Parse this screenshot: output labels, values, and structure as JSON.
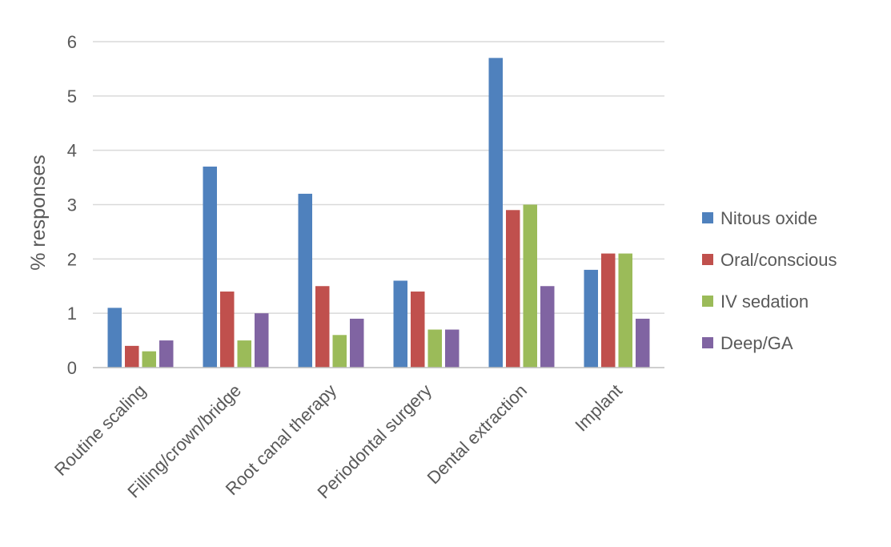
{
  "chart_data": {
    "type": "bar",
    "title": "",
    "xlabel": "",
    "ylabel": "% responses",
    "ylim": [
      0,
      6
    ],
    "yticks": [
      0,
      1,
      2,
      3,
      4,
      5,
      6
    ],
    "grid": true,
    "legend_position": "right",
    "categories": [
      "Routine scaling",
      "Filling/crown/bridge",
      "Root canal therapy",
      "Periodontal surgery",
      "Dental extraction",
      "Implant"
    ],
    "series": [
      {
        "name": "Nitous oxide",
        "color": "#4f81bd",
        "values": [
          1.1,
          3.7,
          3.2,
          1.6,
          5.7,
          1.8
        ]
      },
      {
        "name": "Oral/conscious",
        "color": "#c0504d",
        "values": [
          0.4,
          1.4,
          1.5,
          1.4,
          2.9,
          2.1
        ]
      },
      {
        "name": "IV sedation",
        "color": "#9bbb59",
        "values": [
          0.3,
          0.5,
          0.6,
          0.7,
          3.0,
          2.1
        ]
      },
      {
        "name": "Deep/GA",
        "color": "#8064a2",
        "values": [
          0.5,
          1.0,
          0.9,
          0.7,
          1.5,
          0.9
        ]
      }
    ]
  }
}
